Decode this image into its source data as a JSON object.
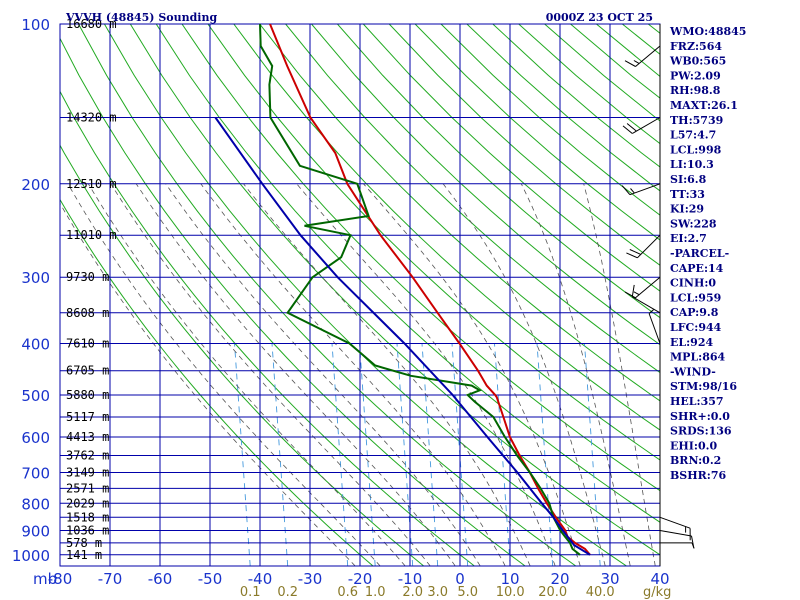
{
  "chart_data": {
    "type": "line",
    "title": "VVVH (48845) Sounding",
    "subtitle": "0000Z 23 OCT 25",
    "pressure_levels": [
      100,
      200,
      300,
      400,
      500,
      600,
      700,
      800,
      900,
      1000
    ],
    "pressure_unit_label": "mb",
    "pressure_range": [
      100,
      1050
    ],
    "temp_ticks": [
      -80,
      -70,
      -60,
      -50,
      -40,
      -30,
      -20,
      -10,
      0,
      10,
      20,
      30,
      40
    ],
    "mixing_ratio_ticks": [
      {
        "label": "0.1",
        "t": -41
      },
      {
        "label": "0.2",
        "t": -33.5
      },
      {
        "label": "0.6",
        "t": -21.5
      },
      {
        "label": "1.0",
        "t": -16
      },
      {
        "label": "2.0",
        "t": -8.5
      },
      {
        "label": "3.0",
        "t": -3.5
      },
      {
        "label": "5.0",
        "t": 2.5
      },
      {
        "label": "10.0",
        "t": 11
      },
      {
        "label": "20.0",
        "t": 19.5
      },
      {
        "label": "40.0",
        "t": 29
      }
    ],
    "mixing_ratio_unit": "g/kg",
    "heights": [
      {
        "p": 100,
        "label": "16680 m"
      },
      {
        "p": 150,
        "label": "14320 m"
      },
      {
        "p": 200,
        "label": "12510 m"
      },
      {
        "p": 250,
        "label": "11010 m"
      },
      {
        "p": 300,
        "label": "9730 m"
      },
      {
        "p": 350,
        "label": "8608 m"
      },
      {
        "p": 400,
        "label": "7610 m"
      },
      {
        "p": 450,
        "label": "6705 m"
      },
      {
        "p": 500,
        "label": "5880 m"
      },
      {
        "p": 550,
        "label": "5117 m"
      },
      {
        "p": 600,
        "label": "4413 m"
      },
      {
        "p": 650,
        "label": "3762 m"
      },
      {
        "p": 700,
        "label": "3149 m"
      },
      {
        "p": 750,
        "label": "2571 m"
      },
      {
        "p": 800,
        "label": "2029 m"
      },
      {
        "p": 850,
        "label": "1518 m"
      },
      {
        "p": 900,
        "label": "1036 m"
      },
      {
        "p": 950,
        "label": "578 m"
      },
      {
        "p": 1000,
        "label": "141 m"
      }
    ],
    "series": [
      {
        "name": "Temperature",
        "color": "#cc0000",
        "points": [
          {
            "p": 1000,
            "t": 26
          },
          {
            "p": 975,
            "t": 24.5
          },
          {
            "p": 950,
            "t": 22
          },
          {
            "p": 925,
            "t": 20
          },
          {
            "p": 900,
            "t": 19
          },
          {
            "p": 850,
            "t": 16
          },
          {
            "p": 800,
            "t": 13
          },
          {
            "p": 750,
            "t": 10
          },
          {
            "p": 700,
            "t": 7
          },
          {
            "p": 650,
            "t": 3.5
          },
          {
            "p": 600,
            "t": 0
          },
          {
            "p": 550,
            "t": -3
          },
          {
            "p": 505,
            "t": -6
          },
          {
            "p": 500,
            "t": -6.5
          },
          {
            "p": 480,
            "t": -9
          },
          {
            "p": 450,
            "t": -12
          },
          {
            "p": 400,
            "t": -18
          },
          {
            "p": 350,
            "t": -25
          },
          {
            "p": 300,
            "t": -33
          },
          {
            "p": 250,
            "t": -43
          },
          {
            "p": 200,
            "t": -54
          },
          {
            "p": 175,
            "t": -59
          },
          {
            "p": 150,
            "t": -67
          },
          {
            "p": 120,
            "t": -76
          },
          {
            "p": 100,
            "t": -83
          }
        ]
      },
      {
        "name": "Dewpoint",
        "color": "#006600",
        "points": [
          {
            "p": 1000,
            "t": 24
          },
          {
            "p": 975,
            "t": 22
          },
          {
            "p": 950,
            "t": 21
          },
          {
            "p": 925,
            "t": 19.5
          },
          {
            "p": 900,
            "t": 18
          },
          {
            "p": 850,
            "t": 15.5
          },
          {
            "p": 800,
            "t": 13.5
          },
          {
            "p": 750,
            "t": 10.5
          },
          {
            "p": 700,
            "t": 7
          },
          {
            "p": 650,
            "t": 3
          },
          {
            "p": 600,
            "t": -1
          },
          {
            "p": 550,
            "t": -5
          },
          {
            "p": 515,
            "t": -10
          },
          {
            "p": 500,
            "t": -12
          },
          {
            "p": 490,
            "t": -10
          },
          {
            "p": 480,
            "t": -12
          },
          {
            "p": 460,
            "t": -25
          },
          {
            "p": 440,
            "t": -33
          },
          {
            "p": 400,
            "t": -40
          },
          {
            "p": 350,
            "t": -55
          },
          {
            "p": 300,
            "t": -53
          },
          {
            "p": 275,
            "t": -49
          },
          {
            "p": 250,
            "t": -49
          },
          {
            "p": 240,
            "t": -59
          },
          {
            "p": 230,
            "t": -47
          },
          {
            "p": 200,
            "t": -52
          },
          {
            "p": 185,
            "t": -65
          },
          {
            "p": 150,
            "t": -75
          },
          {
            "p": 130,
            "t": -78
          },
          {
            "p": 120,
            "t": -79
          },
          {
            "p": 110,
            "t": -83
          },
          {
            "p": 100,
            "t": -85
          }
        ]
      },
      {
        "name": "Parcel",
        "color": "#0000aa",
        "points": [
          {
            "p": 1000,
            "t": 26
          },
          {
            "p": 959,
            "t": 22
          },
          {
            "p": 900,
            "t": 18.5
          },
          {
            "p": 850,
            "t": 15.5
          },
          {
            "p": 800,
            "t": 12
          },
          {
            "p": 700,
            "t": 4.5
          },
          {
            "p": 600,
            "t": -4.5
          },
          {
            "p": 500,
            "t": -15
          },
          {
            "p": 400,
            "t": -29
          },
          {
            "p": 300,
            "t": -48
          },
          {
            "p": 250,
            "t": -59
          },
          {
            "p": 200,
            "t": -71
          },
          {
            "p": 150,
            "t": -86
          }
        ]
      }
    ],
    "wind_barbs": [
      {
        "p": 110,
        "dir": 230,
        "speed": 15
      },
      {
        "p": 150,
        "dir": 240,
        "speed": 20
      },
      {
        "p": 200,
        "dir": 250,
        "speed": 15
      },
      {
        "p": 250,
        "dir": 225,
        "speed": 20
      },
      {
        "p": 300,
        "dir": 230,
        "speed": 15
      },
      {
        "p": 350,
        "dir": 300,
        "speed": 10
      },
      {
        "p": 400,
        "dir": 340,
        "speed": 5
      },
      {
        "p": 850,
        "dir": 110,
        "speed": 15
      },
      {
        "p": 900,
        "dir": 100,
        "speed": 10
      },
      {
        "p": 950,
        "dir": 90,
        "speed": 5
      }
    ],
    "indices": [
      "WMO:48845",
      "FRZ:564",
      "WB0:565",
      "PW:2.09",
      "RH:98.8",
      "MAXT:26.1",
      "TH:5739",
      "L57:4.7",
      "LCL:998",
      "LI:10.3",
      "SI:6.8",
      "TT:33",
      "KI:29",
      "SW:228",
      "EI:2.7",
      "-PARCEL-",
      "CAPE:14",
      "CINH:0",
      "LCL:959",
      "CAP:9.8",
      "LFC:944",
      "EL:924",
      "MPL:864",
      "-WIND-",
      "STM:98/16",
      "HEL:357",
      "SHR+:0.0",
      "SRDS:136",
      "EHI:0.0",
      "BRN:0.2",
      "BSHR:76"
    ],
    "grid": true
  },
  "colors": {
    "grid": "#0000aa",
    "dry_adiabat": "#22aa22",
    "moist_adiabat": "#555555",
    "mixing_ratio": "#4499dd",
    "barb": "#000000"
  }
}
